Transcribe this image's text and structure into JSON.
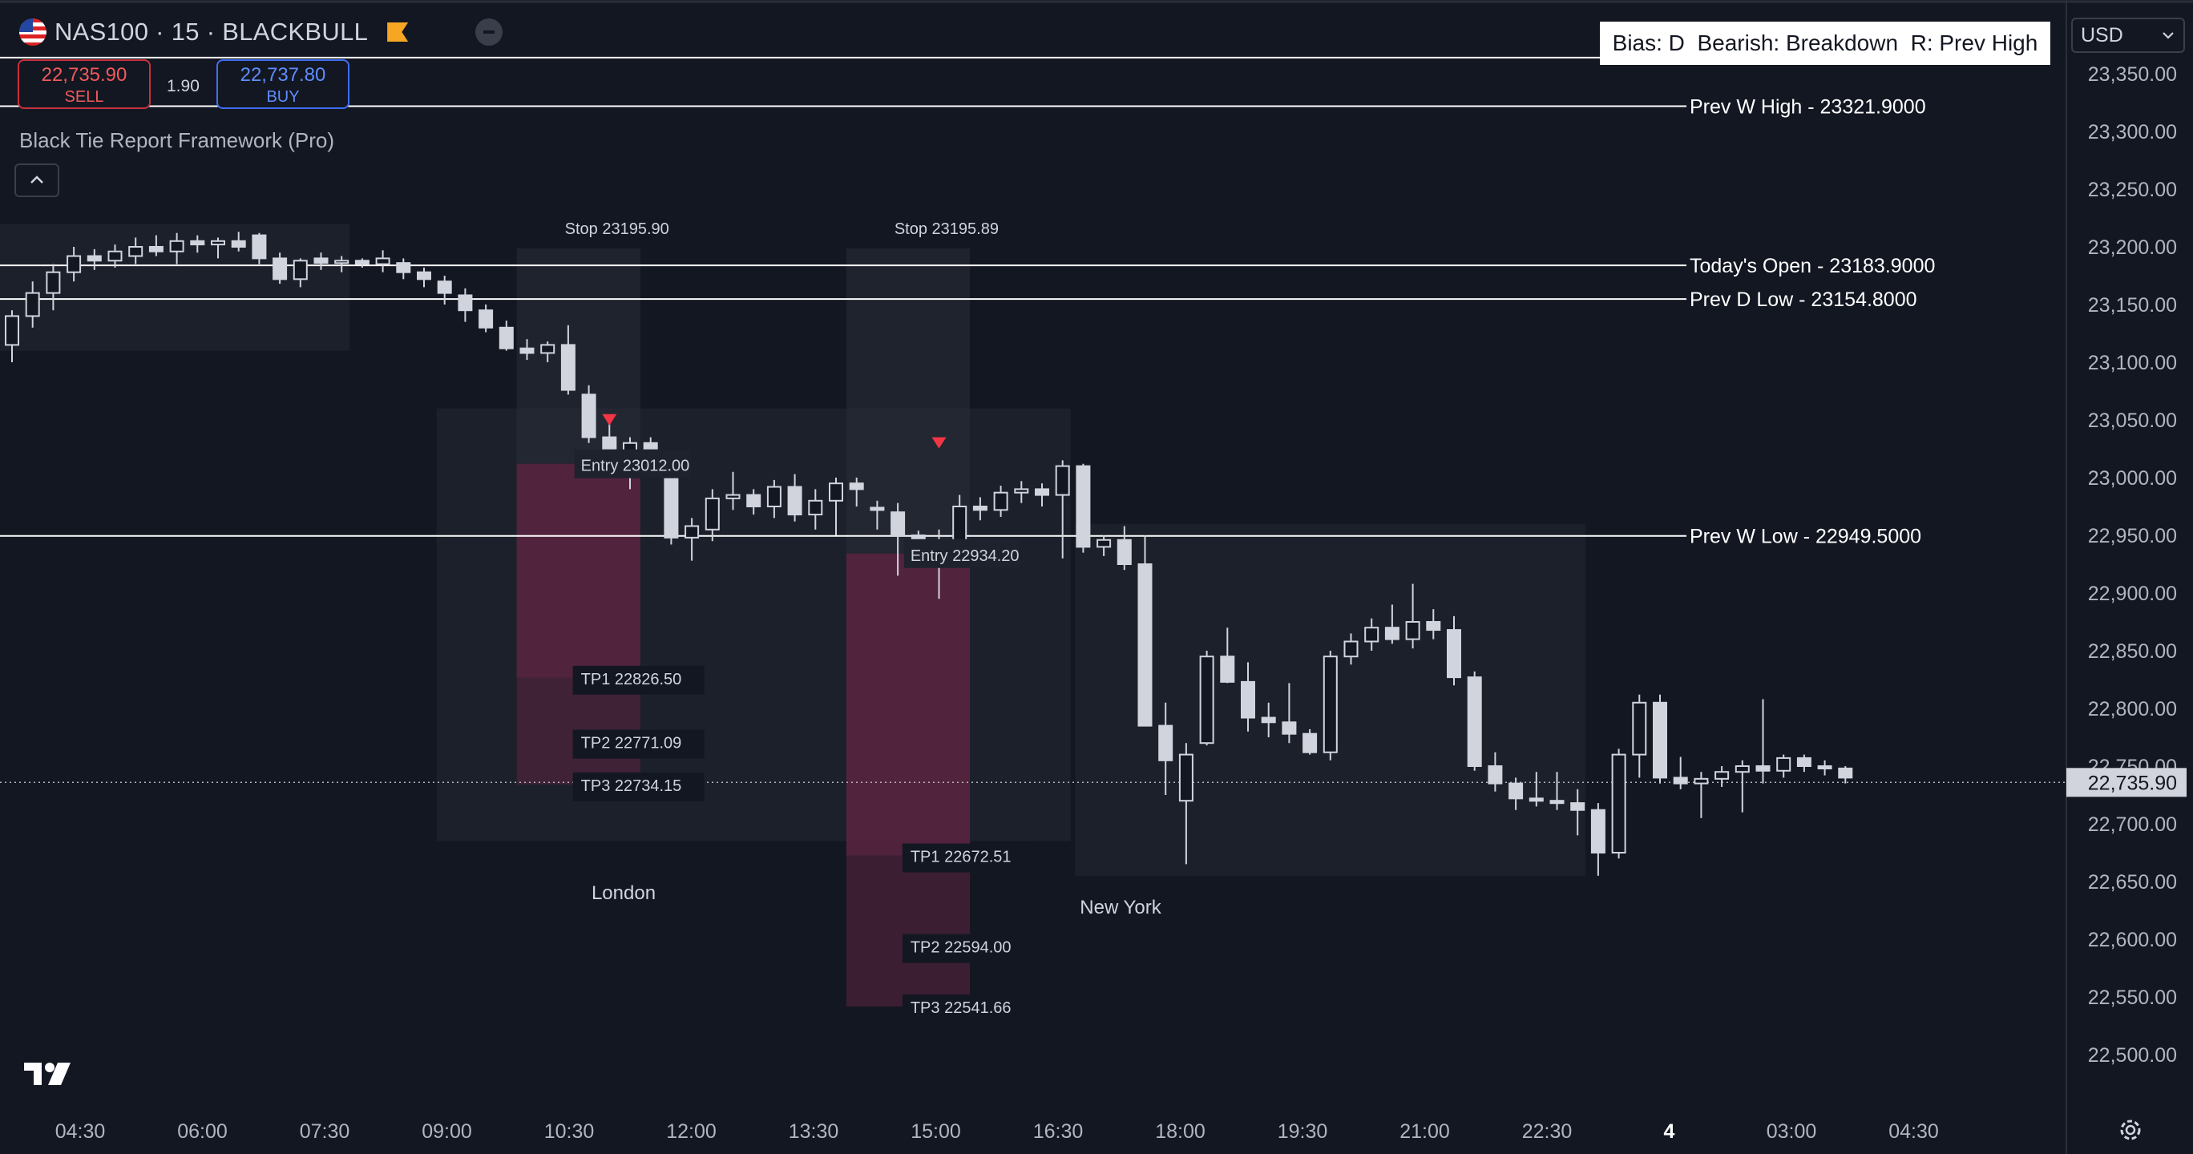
{
  "header": {
    "symbol": "NAS100 · 15 · BLACKBULL",
    "sell_price": "22,735.90",
    "sell_label": "SELL",
    "spread": "1.90",
    "buy_price": "22,737.80",
    "buy_label": "BUY",
    "indicator": "Black Tie Report Framework (Pro)",
    "bias": "Bias: D  Bearish: Breakdown  R: Prev High",
    "currency": "USD"
  },
  "icons": {
    "flag": "us-flag-icon",
    "pin": "flag-pin-icon",
    "remove": "minus-icon",
    "collapse": "chevron-up-icon",
    "currency_menu": "chevron-down-icon",
    "logo": "tradingview-logo",
    "settings": "gear-icon"
  },
  "colors": {
    "background": "#131722",
    "candle": "#d1d4dc",
    "short_zone": "#5c2540",
    "signal_marker": "#f23645",
    "level_line": "#ffffff"
  },
  "chart_data": {
    "type": "candlestick",
    "symbol": "NAS100",
    "interval": "15",
    "y_range": [
      22475,
      23395
    ],
    "y_ticks": [
      23350,
      23300,
      23250,
      23200,
      23150,
      23100,
      23050,
      23000,
      22950,
      22900,
      22850,
      22800,
      22750,
      22700,
      22650,
      22600,
      22550,
      22500
    ],
    "y_tick_labels": [
      "23,350.00",
      "23,300.00",
      "23,250.00",
      "23,200.00",
      "23,150.00",
      "23,100.00",
      "23,050.00",
      "23,000.00",
      "22,950.00",
      "22,900.00",
      "22,850.00",
      "22,800.00",
      "22,750.00",
      "22,700.00",
      "22,650.00",
      "22,600.00",
      "22,550.00",
      "22,500.00"
    ],
    "x_tick_labels": [
      "04:30",
      "06:00",
      "07:30",
      "09:00",
      "10:30",
      "12:00",
      "13:30",
      "15:00",
      "16:30",
      "18:00",
      "19:30",
      "21:00",
      "22:30",
      "4",
      "03:00",
      "04:30"
    ],
    "current_price": 22735.9,
    "current_price_label": "22,735.90",
    "levels": [
      {
        "price": 23364.0,
        "label": ""
      },
      {
        "price": 23321.9,
        "label": "Prev W High - 23321.9000"
      },
      {
        "price": 23183.9,
        "label": "Today's Open - 23183.9000"
      },
      {
        "price": 23154.8,
        "label": "Prev D Low  - 23154.8000"
      },
      {
        "price": 22949.5,
        "label": "Prev W Low  - 22949.5000"
      }
    ],
    "sessions": [
      {
        "name": "",
        "x0": -1,
        "x1": 16,
        "low": 23110,
        "high": 23220
      },
      {
        "name": "London",
        "x0": 21,
        "x1": 51,
        "low": 22685,
        "high": 23060
      },
      {
        "name": "New York",
        "x0": 52,
        "x1": 76,
        "low": 22655,
        "high": 22960
      }
    ],
    "trade_setups": [
      {
        "x0": 24.5,
        "x1": 30.5,
        "signal_price": 23055,
        "stop_label": "Stop  23195.90",
        "entry_label": "Entry 23012.00",
        "entry": 23012.0,
        "tp_labels": [
          "TP1   22826.50",
          "TP2   22771.09",
          "TP3   22734.15"
        ],
        "tp_values": [
          22826.5,
          22771.09,
          22734.15
        ]
      },
      {
        "x0": 40.5,
        "x1": 46.5,
        "signal_price": 23035,
        "stop_label": "Stop  23195.89",
        "entry_label": "Entry 22934.20",
        "entry": 22934.2,
        "tp_labels": [
          "TP1   22672.51",
          "TP2   22594.00",
          "TP3   22541.66"
        ],
        "tp_values": [
          22672.51,
          22594.0,
          22541.66
        ]
      }
    ],
    "candles": [
      [
        23115,
        23145,
        23100,
        23140
      ],
      [
        23140,
        23170,
        23130,
        23160
      ],
      [
        23160,
        23185,
        23145,
        23178
      ],
      [
        23178,
        23200,
        23170,
        23192
      ],
      [
        23192,
        23198,
        23180,
        23188
      ],
      [
        23188,
        23202,
        23182,
        23196
      ],
      [
        23192,
        23208,
        23185,
        23200
      ],
      [
        23200,
        23210,
        23192,
        23196
      ],
      [
        23196,
        23212,
        23185,
        23205
      ],
      [
        23205,
        23210,
        23195,
        23202
      ],
      [
        23202,
        23208,
        23190,
        23205
      ],
      [
        23205,
        23213,
        23196,
        23200
      ],
      [
        23210,
        23212,
        23185,
        23190
      ],
      [
        23190,
        23195,
        23168,
        23172
      ],
      [
        23172,
        23190,
        23165,
        23188
      ],
      [
        23190,
        23195,
        23180,
        23186
      ],
      [
        23186,
        23192,
        23178,
        23188
      ],
      [
        23188,
        23190,
        23182,
        23185
      ],
      [
        23185,
        23197,
        23178,
        23190
      ],
      [
        23186,
        23190,
        23172,
        23178
      ],
      [
        23178,
        23182,
        23165,
        23172
      ],
      [
        23170,
        23175,
        23150,
        23160
      ],
      [
        23158,
        23164,
        23135,
        23145
      ],
      [
        23145,
        23150,
        23126,
        23130
      ],
      [
        23130,
        23136,
        23110,
        23112
      ],
      [
        23112,
        23120,
        23102,
        23108
      ],
      [
        23108,
        23118,
        23100,
        23115
      ],
      [
        23115,
        23132,
        23072,
        23076
      ],
      [
        23072,
        23080,
        23030,
        23035
      ],
      [
        23035,
        23050,
        23012,
        23015
      ],
      [
        23018,
        23035,
        22990,
        23030
      ],
      [
        23030,
        23035,
        23005,
        23008
      ],
      [
        23008,
        23010,
        22942,
        22948
      ],
      [
        22948,
        22965,
        22928,
        22958
      ],
      [
        22955,
        22990,
        22945,
        22982
      ],
      [
        22982,
        23005,
        22972,
        22985
      ],
      [
        22985,
        22990,
        22968,
        22975
      ],
      [
        22975,
        22998,
        22965,
        22992
      ],
      [
        22992,
        23003,
        22962,
        22968
      ],
      [
        22968,
        22990,
        22955,
        22980
      ],
      [
        22980,
        23000,
        22950,
        22995
      ],
      [
        22995,
        23000,
        22975,
        22990
      ],
      [
        22974,
        22980,
        22955,
        22972
      ],
      [
        22970,
        22978,
        22915,
        22950
      ],
      [
        22950,
        22954,
        22932,
        22940
      ],
      [
        22940,
        22955,
        22895,
        22935
      ],
      [
        22935,
        22985,
        22930,
        22975
      ],
      [
        22975,
        22983,
        22963,
        22972
      ],
      [
        22972,
        22993,
        22966,
        22987
      ],
      [
        22987,
        22997,
        22978,
        22990
      ],
      [
        22990,
        22995,
        22975,
        22985
      ],
      [
        22985,
        23015,
        22930,
        23010
      ],
      [
        23010,
        23012,
        22935,
        22940
      ],
      [
        22940,
        22950,
        22932,
        22946
      ],
      [
        22946,
        22958,
        22920,
        22925
      ],
      [
        22925,
        22950,
        22785,
        22785
      ],
      [
        22785,
        22805,
        22725,
        22755
      ],
      [
        22720,
        22770,
        22665,
        22760
      ],
      [
        22770,
        22850,
        22768,
        22845
      ],
      [
        22845,
        22870,
        22822,
        22823
      ],
      [
        22823,
        22840,
        22780,
        22792
      ],
      [
        22792,
        22805,
        22775,
        22788
      ],
      [
        22788,
        22822,
        22770,
        22778
      ],
      [
        22778,
        22782,
        22760,
        22762
      ],
      [
        22762,
        22850,
        22755,
        22845
      ],
      [
        22845,
        22865,
        22838,
        22858
      ],
      [
        22858,
        22878,
        22850,
        22870
      ],
      [
        22870,
        22890,
        22856,
        22860
      ],
      [
        22860,
        22908,
        22852,
        22875
      ],
      [
        22875,
        22886,
        22860,
        22868
      ],
      [
        22868,
        22880,
        22820,
        22827
      ],
      [
        22827,
        22832,
        22746,
        22750
      ],
      [
        22750,
        22762,
        22728,
        22735
      ],
      [
        22735,
        22740,
        22712,
        22722
      ],
      [
        22722,
        22745,
        22715,
        22720
      ],
      [
        22720,
        22745,
        22712,
        22718
      ],
      [
        22718,
        22730,
        22690,
        22712
      ],
      [
        22712,
        22718,
        22655,
        22675
      ],
      [
        22675,
        22765,
        22670,
        22760
      ],
      [
        22760,
        22812,
        22740,
        22805
      ],
      [
        22805,
        22812,
        22735,
        22740
      ],
      [
        22740,
        22758,
        22730,
        22735
      ],
      [
        22735,
        22745,
        22705,
        22739
      ],
      [
        22739,
        22750,
        22732,
        22745
      ],
      [
        22745,
        22755,
        22710,
        22750
      ],
      [
        22750,
        22808,
        22735,
        22746
      ],
      [
        22746,
        22760,
        22740,
        22757
      ],
      [
        22757,
        22760,
        22745,
        22750
      ],
      [
        22750,
        22755,
        22742,
        22748
      ],
      [
        22748,
        22750,
        22735,
        22740
      ]
    ]
  }
}
